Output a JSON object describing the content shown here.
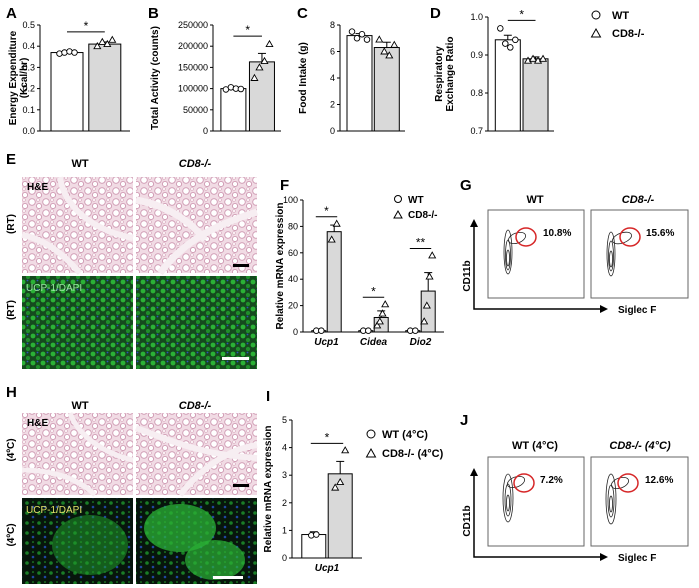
{
  "panel_letters": [
    "A",
    "B",
    "C",
    "D",
    "E",
    "F",
    "G",
    "H",
    "I",
    "J"
  ],
  "legend_top": {
    "wt": "WT",
    "ko": "CD8-/-"
  },
  "legend_f": {
    "wt": "WT",
    "ko": "CD8-/-"
  },
  "legend_i": {
    "wt": "WT (4°C)",
    "ko": "CD8-/- (4°C)"
  },
  "histology": {
    "col_wt": "WT",
    "col_ko": "CD8-/-",
    "he_label": "H&E",
    "ucp_label": "UCP-1/DAPI",
    "row_rt": "(RT)",
    "row_4c": "(4ºC)"
  },
  "flow": {
    "x_label": "Siglec F",
    "y_label": "CD11b",
    "g": [
      {
        "title": "WT",
        "pct": "10.8%"
      },
      {
        "title": "CD8-/-",
        "pct": "15.6%"
      }
    ],
    "j": [
      {
        "title": "WT (4°C)",
        "pct": "7.2%"
      },
      {
        "title": "CD8-/- (4°C)",
        "pct": "12.6%"
      }
    ]
  },
  "colors": {
    "wt_bar": "#ffffff",
    "ko_bar": "#d9d9d9",
    "gate": "#d62728",
    "ucp_green": "#1fa02a",
    "he_pink": "#e9c9d6"
  },
  "chart_data": [
    {
      "panel": "A",
      "type": "bar",
      "categories": [
        "WT",
        "CD8-/-"
      ],
      "values": [
        0.37,
        0.41
      ],
      "errors": [
        0.005,
        0.01
      ],
      "points": [
        [
          0.365,
          0.37,
          0.375,
          0.37
        ],
        [
          0.4,
          0.42,
          0.41,
          0.43
        ]
      ],
      "ylabel": "Energy Expenditure\n(Kcal/hr)",
      "ylim": [
        0,
        0.5
      ],
      "yticks": [
        "0.0",
        "0.1",
        "0.2",
        "0.3",
        "0.4",
        "0.5"
      ],
      "significance": "*"
    },
    {
      "panel": "B",
      "type": "bar",
      "categories": [
        "WT",
        "CD8-/-"
      ],
      "values": [
        100000,
        163000
      ],
      "errors": [
        5000,
        20000
      ],
      "points": [
        [
          98000,
          103000,
          100000,
          99000
        ],
        [
          125000,
          150000,
          165000,
          205000
        ]
      ],
      "ylabel": "Total Activity (counts)",
      "ylim": [
        0,
        250000
      ],
      "yticks": [
        "0",
        "50000",
        "100000",
        "150000",
        "200000",
        "250000"
      ],
      "significance": "*"
    },
    {
      "panel": "C",
      "type": "bar",
      "categories": [
        "WT",
        "CD8-/-"
      ],
      "values": [
        7.2,
        6.3
      ],
      "errors": [
        0.15,
        0.4
      ],
      "points": [
        [
          7.5,
          7.0,
          7.3,
          6.9
        ],
        [
          6.9,
          6.0,
          5.7,
          6.5
        ]
      ],
      "ylabel": "Food  Intake (g)",
      "ylim": [
        0,
        8
      ],
      "yticks": [
        "0",
        "2",
        "4",
        "6",
        "8"
      ]
    },
    {
      "panel": "D",
      "type": "bar",
      "categories": [
        "WT",
        "CD8-/-"
      ],
      "values": [
        0.94,
        0.89
      ],
      "errors": [
        0.012,
        0.005
      ],
      "points": [
        [
          0.97,
          0.93,
          0.92,
          0.94
        ],
        [
          0.885,
          0.89,
          0.885,
          0.89
        ]
      ],
      "ylabel": "Respiratory\nExchange Ratio",
      "ylim": [
        0.7,
        1.0
      ],
      "yticks": [
        "0.7",
        "0.8",
        "0.9",
        "1.0"
      ],
      "significance": "*"
    },
    {
      "panel": "F",
      "type": "bar",
      "categories": [
        "Ucp1",
        "Cidea",
        "Dio2"
      ],
      "series": [
        {
          "name": "WT",
          "values": [
            1,
            1,
            1
          ],
          "errors": [
            0,
            0,
            0
          ]
        },
        {
          "name": "CD8-/-",
          "values": [
            76,
            11,
            31
          ],
          "errors": [
            5,
            5,
            14
          ]
        }
      ],
      "points": [
        [
          [
            1,
            1
          ],
          [
            70,
            82
          ]
        ],
        [
          [
            1,
            1
          ],
          [
            5,
            8,
            14,
            21
          ]
        ],
        [
          [
            1,
            1
          ],
          [
            8,
            20,
            42,
            58
          ]
        ]
      ],
      "ylabel": "Relative mRNA expression",
      "ylim": [
        0,
        100
      ],
      "yticks": [
        "0",
        "20",
        "40",
        "60",
        "80",
        "100"
      ],
      "significance": [
        "*",
        "*",
        "**"
      ]
    },
    {
      "panel": "I",
      "type": "bar",
      "categories": [
        "Ucp1"
      ],
      "series": [
        {
          "name": "WT (4°C)",
          "values": [
            0.85
          ],
          "errors": [
            0.1
          ]
        },
        {
          "name": "CD8-/- (4°C)",
          "values": [
            3.05
          ],
          "errors": [
            0.45
          ]
        }
      ],
      "points": [
        [
          [
            0.82,
            0.85
          ],
          [
            2.55,
            2.75,
            3.9
          ]
        ]
      ],
      "ylabel": "Relative mRNA expression",
      "ylim": [
        0,
        5
      ],
      "yticks": [
        "0",
        "1",
        "2",
        "3",
        "4",
        "5"
      ],
      "significance": "*"
    }
  ]
}
